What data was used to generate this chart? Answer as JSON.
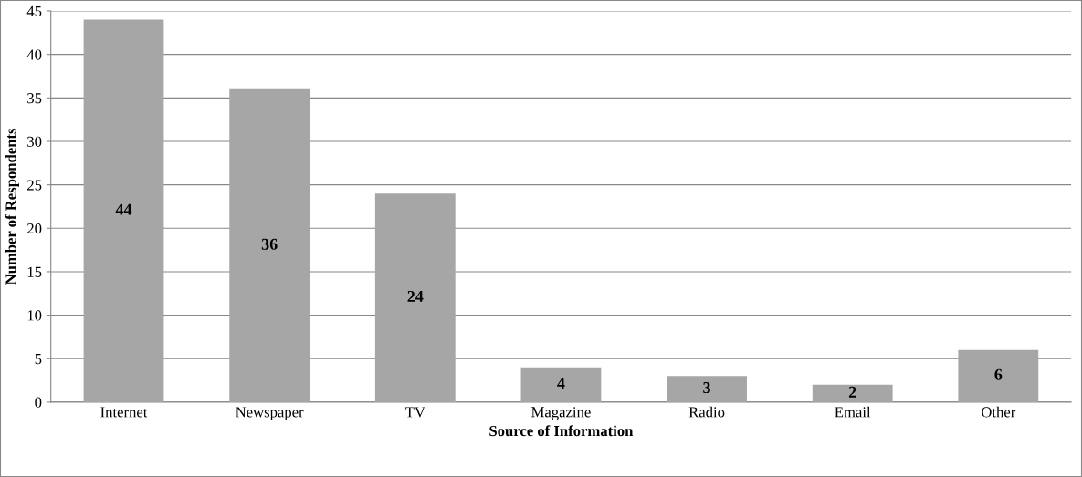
{
  "chart_data": {
    "type": "bar",
    "xlabel": "Source of Information",
    "ylabel": "Number of Respondents",
    "categories": [
      "Internet",
      "Newspaper",
      "TV",
      "Magazine",
      "Radio",
      "Email",
      "Other"
    ],
    "values": [
      44,
      36,
      24,
      4,
      3,
      2,
      6
    ],
    "color": "#a6a6a6",
    "ylim": [
      0,
      45
    ],
    "yticks": [
      0,
      5,
      10,
      15,
      20,
      25,
      30,
      35,
      40,
      45
    ],
    "grid": "y",
    "data_labels": true,
    "legend": false
  }
}
